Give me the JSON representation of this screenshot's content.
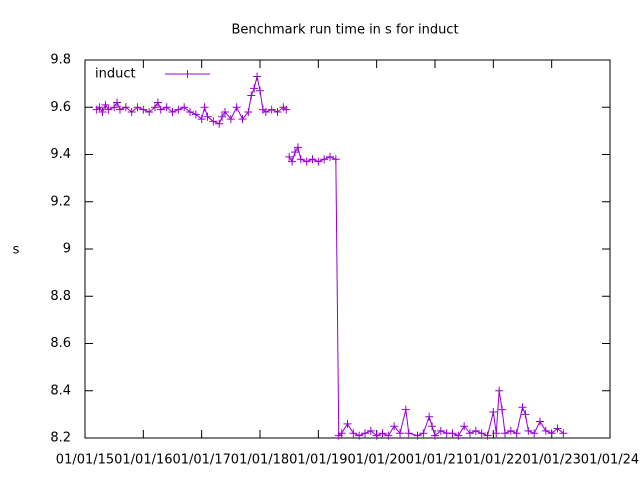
{
  "chart_data": {
    "type": "line",
    "title": "Benchmark run time in s for induct",
    "y_label": "s",
    "legend_position": "top-left",
    "xlim": [
      2015,
      2024
    ],
    "xticks": [
      {
        "value": 2015,
        "label": "01/01/15"
      },
      {
        "value": 2016,
        "label": "01/01/16"
      },
      {
        "value": 2017,
        "label": "01/01/17"
      },
      {
        "value": 2018,
        "label": "01/01/18"
      },
      {
        "value": 2019,
        "label": "01/01/19"
      },
      {
        "value": 2020,
        "label": "01/01/20"
      },
      {
        "value": 2021,
        "label": "01/01/21"
      },
      {
        "value": 2022,
        "label": "01/01/22"
      },
      {
        "value": 2023,
        "label": "01/01/23"
      },
      {
        "value": 2024,
        "label": "01/01/24"
      }
    ],
    "ylim": [
      8.2,
      9.8
    ],
    "yticks": [
      8.2,
      8.4,
      8.6,
      8.8,
      9,
      9.2,
      9.4,
      9.6,
      9.8
    ],
    "series": [
      {
        "name": "induct",
        "color": "#9400d3",
        "x": [
          2015.2,
          2015.25,
          2015.3,
          2015.35,
          2015.4,
          2015.5,
          2015.55,
          2015.6,
          2015.7,
          2015.8,
          2015.9,
          2016.0,
          2016.1,
          2016.2,
          2016.25,
          2016.3,
          2016.4,
          2016.5,
          2016.6,
          2016.7,
          2016.8,
          2016.9,
          2017.0,
          2017.05,
          2017.1,
          2017.2,
          2017.3,
          2017.35,
          2017.4,
          2017.5,
          2017.6,
          2017.7,
          2017.8,
          2017.85,
          2017.9,
          2017.95,
          2018.0,
          2018.05,
          2018.1,
          2018.2,
          2018.3,
          2018.4,
          2018.45,
          2018.47,
          2018.5,
          2018.55,
          2018.6,
          2018.65,
          2018.7,
          2018.8,
          2018.9,
          2019.0,
          2019.1,
          2019.2,
          2019.3,
          2019.35,
          2019.4,
          2019.5,
          2019.6,
          2019.7,
          2019.8,
          2019.9,
          2020.0,
          2020.1,
          2020.2,
          2020.3,
          2020.4,
          2020.5,
          2020.55,
          2020.7,
          2020.8,
          2020.9,
          2020.95,
          2021.0,
          2021.1,
          2021.2,
          2021.3,
          2021.4,
          2021.5,
          2021.6,
          2021.7,
          2021.8,
          2021.9,
          2022.0,
          2022.05,
          2022.1,
          2022.15,
          2022.2,
          2022.3,
          2022.4,
          2022.5,
          2022.55,
          2022.6,
          2022.7,
          2022.8,
          2022.9,
          2023.0,
          2023.1,
          2023.2
        ],
        "values": [
          9.59,
          9.6,
          9.58,
          9.61,
          9.59,
          9.6,
          9.62,
          9.59,
          9.6,
          9.58,
          9.6,
          9.59,
          9.58,
          9.6,
          9.62,
          9.59,
          9.6,
          9.58,
          9.59,
          9.6,
          9.58,
          9.57,
          9.55,
          9.6,
          9.56,
          9.54,
          9.53,
          9.56,
          9.58,
          9.55,
          9.6,
          9.55,
          9.58,
          9.65,
          9.68,
          9.73,
          9.67,
          9.59,
          9.58,
          9.59,
          9.58,
          9.6,
          9.59,
          null,
          9.39,
          9.37,
          9.41,
          9.43,
          9.38,
          9.37,
          9.38,
          9.37,
          9.38,
          9.39,
          9.38,
          8.21,
          8.22,
          8.26,
          8.22,
          8.21,
          8.22,
          8.23,
          8.21,
          8.22,
          8.21,
          8.25,
          8.22,
          8.32,
          8.22,
          8.21,
          8.22,
          8.29,
          8.25,
          8.21,
          8.23,
          8.22,
          8.22,
          8.21,
          8.25,
          8.22,
          8.23,
          8.22,
          8.21,
          8.31,
          8.22,
          8.4,
          8.32,
          8.22,
          8.23,
          8.22,
          8.33,
          8.3,
          8.23,
          8.22,
          8.27,
          8.23,
          8.22,
          8.24,
          8.22
        ]
      }
    ]
  }
}
